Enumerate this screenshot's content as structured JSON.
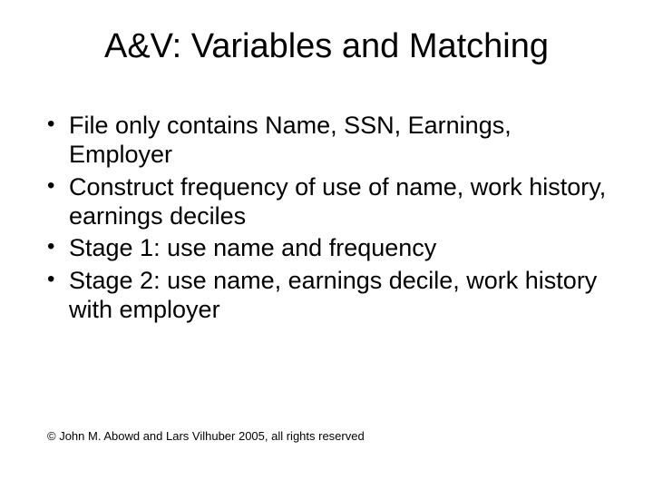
{
  "title": "A&V: Variables and Matching",
  "bullets": [
    "File only contains Name, SSN, Earnings, Employer",
    "Construct frequency of use of name, work history, earnings deciles",
    "Stage 1: use name and frequency",
    "Stage 2: use name, earnings decile, work history with employer"
  ],
  "footer": "© John M. Abowd and Lars Vilhuber 2005, all rights reserved",
  "style": {
    "background_color": "#ffffff",
    "text_color": "#000000",
    "title_fontsize": 38,
    "body_fontsize": 27,
    "footer_fontsize": 13,
    "font_family": "Arial"
  }
}
